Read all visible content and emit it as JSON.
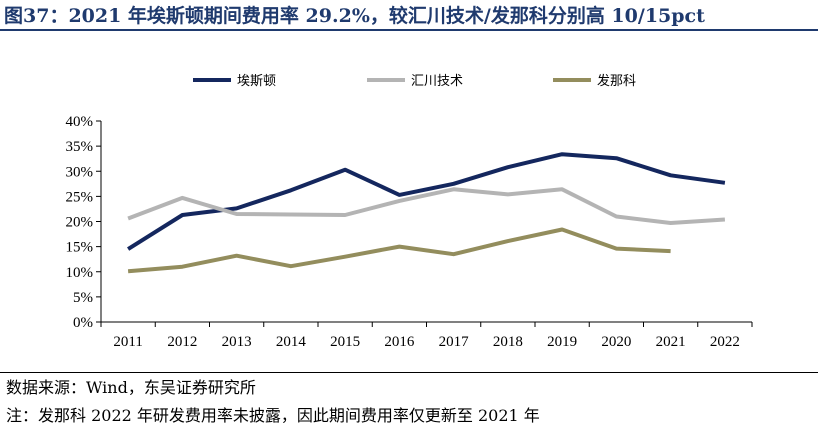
{
  "header": {
    "title": "图37：2021 年埃斯顿期间费用率 29.2%，较汇川技术/发那科分别高 10/15pct"
  },
  "footer": {
    "source": "数据来源：Wind，东吴证券研究所",
    "note": "注：发那科 2022 年研发费用率未披露，因此期间费用率仅更新至 2021 年"
  },
  "chart_data": {
    "type": "line",
    "x": [
      "2011",
      "2012",
      "2013",
      "2014",
      "2015",
      "2016",
      "2017",
      "2018",
      "2019",
      "2020",
      "2021",
      "2022"
    ],
    "ylim": [
      0,
      40
    ],
    "yticks": [
      0,
      5,
      10,
      15,
      20,
      25,
      30,
      35,
      40
    ],
    "ytick_labels": [
      "0%",
      "5%",
      "10%",
      "15%",
      "20%",
      "25%",
      "30%",
      "35%",
      "40%"
    ],
    "grid": false,
    "legend_position": "top",
    "series": [
      {
        "name": "埃斯顿",
        "color": "#14275e",
        "values": [
          14.5,
          21.3,
          22.6,
          26.2,
          30.3,
          25.3,
          27.5,
          30.8,
          33.4,
          32.6,
          29.2,
          27.7
        ]
      },
      {
        "name": "汇川技术",
        "color": "#b4b4b4",
        "values": [
          20.6,
          24.7,
          21.5,
          21.4,
          21.3,
          24.1,
          26.4,
          25.4,
          26.4,
          21.0,
          19.7,
          20.4
        ]
      },
      {
        "name": "发那科",
        "color": "#938d5d",
        "values": [
          10.1,
          11.0,
          13.2,
          11.1,
          13.0,
          15.0,
          13.5,
          16.1,
          18.4,
          14.6,
          14.1,
          null
        ]
      }
    ]
  }
}
